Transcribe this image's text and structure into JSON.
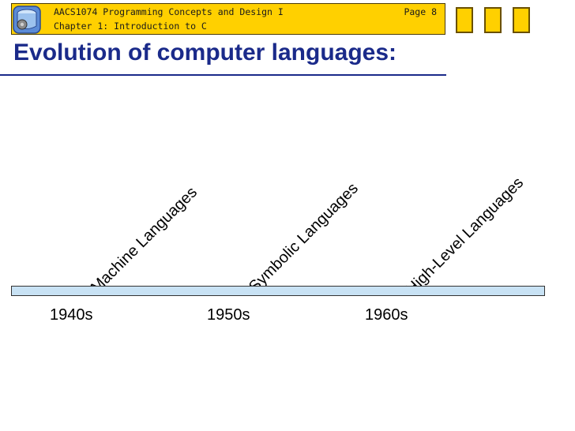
{
  "header": {
    "course": "AACS1074 Programming Concepts and Design I",
    "page": "Page 8",
    "chapter": "Chapter 1: Introduction to C",
    "colors": {
      "bar": "#FFD000",
      "border": "#4a3a00"
    },
    "logo_icon": "blue-cylinder-gear-icon"
  },
  "nav": {
    "buttons": [
      "nav-box",
      "nav-box",
      "nav-box"
    ]
  },
  "slide": {
    "title": "Evolution of computer languages:",
    "title_color": "#1a2a8a"
  },
  "timeline": {
    "bar_color": "#C8E2F4",
    "decades": [
      "1940s",
      "1950s",
      "1960s"
    ],
    "eras": [
      "Machine Languages",
      "Symbolic Languages",
      "High-Level Languages"
    ]
  }
}
